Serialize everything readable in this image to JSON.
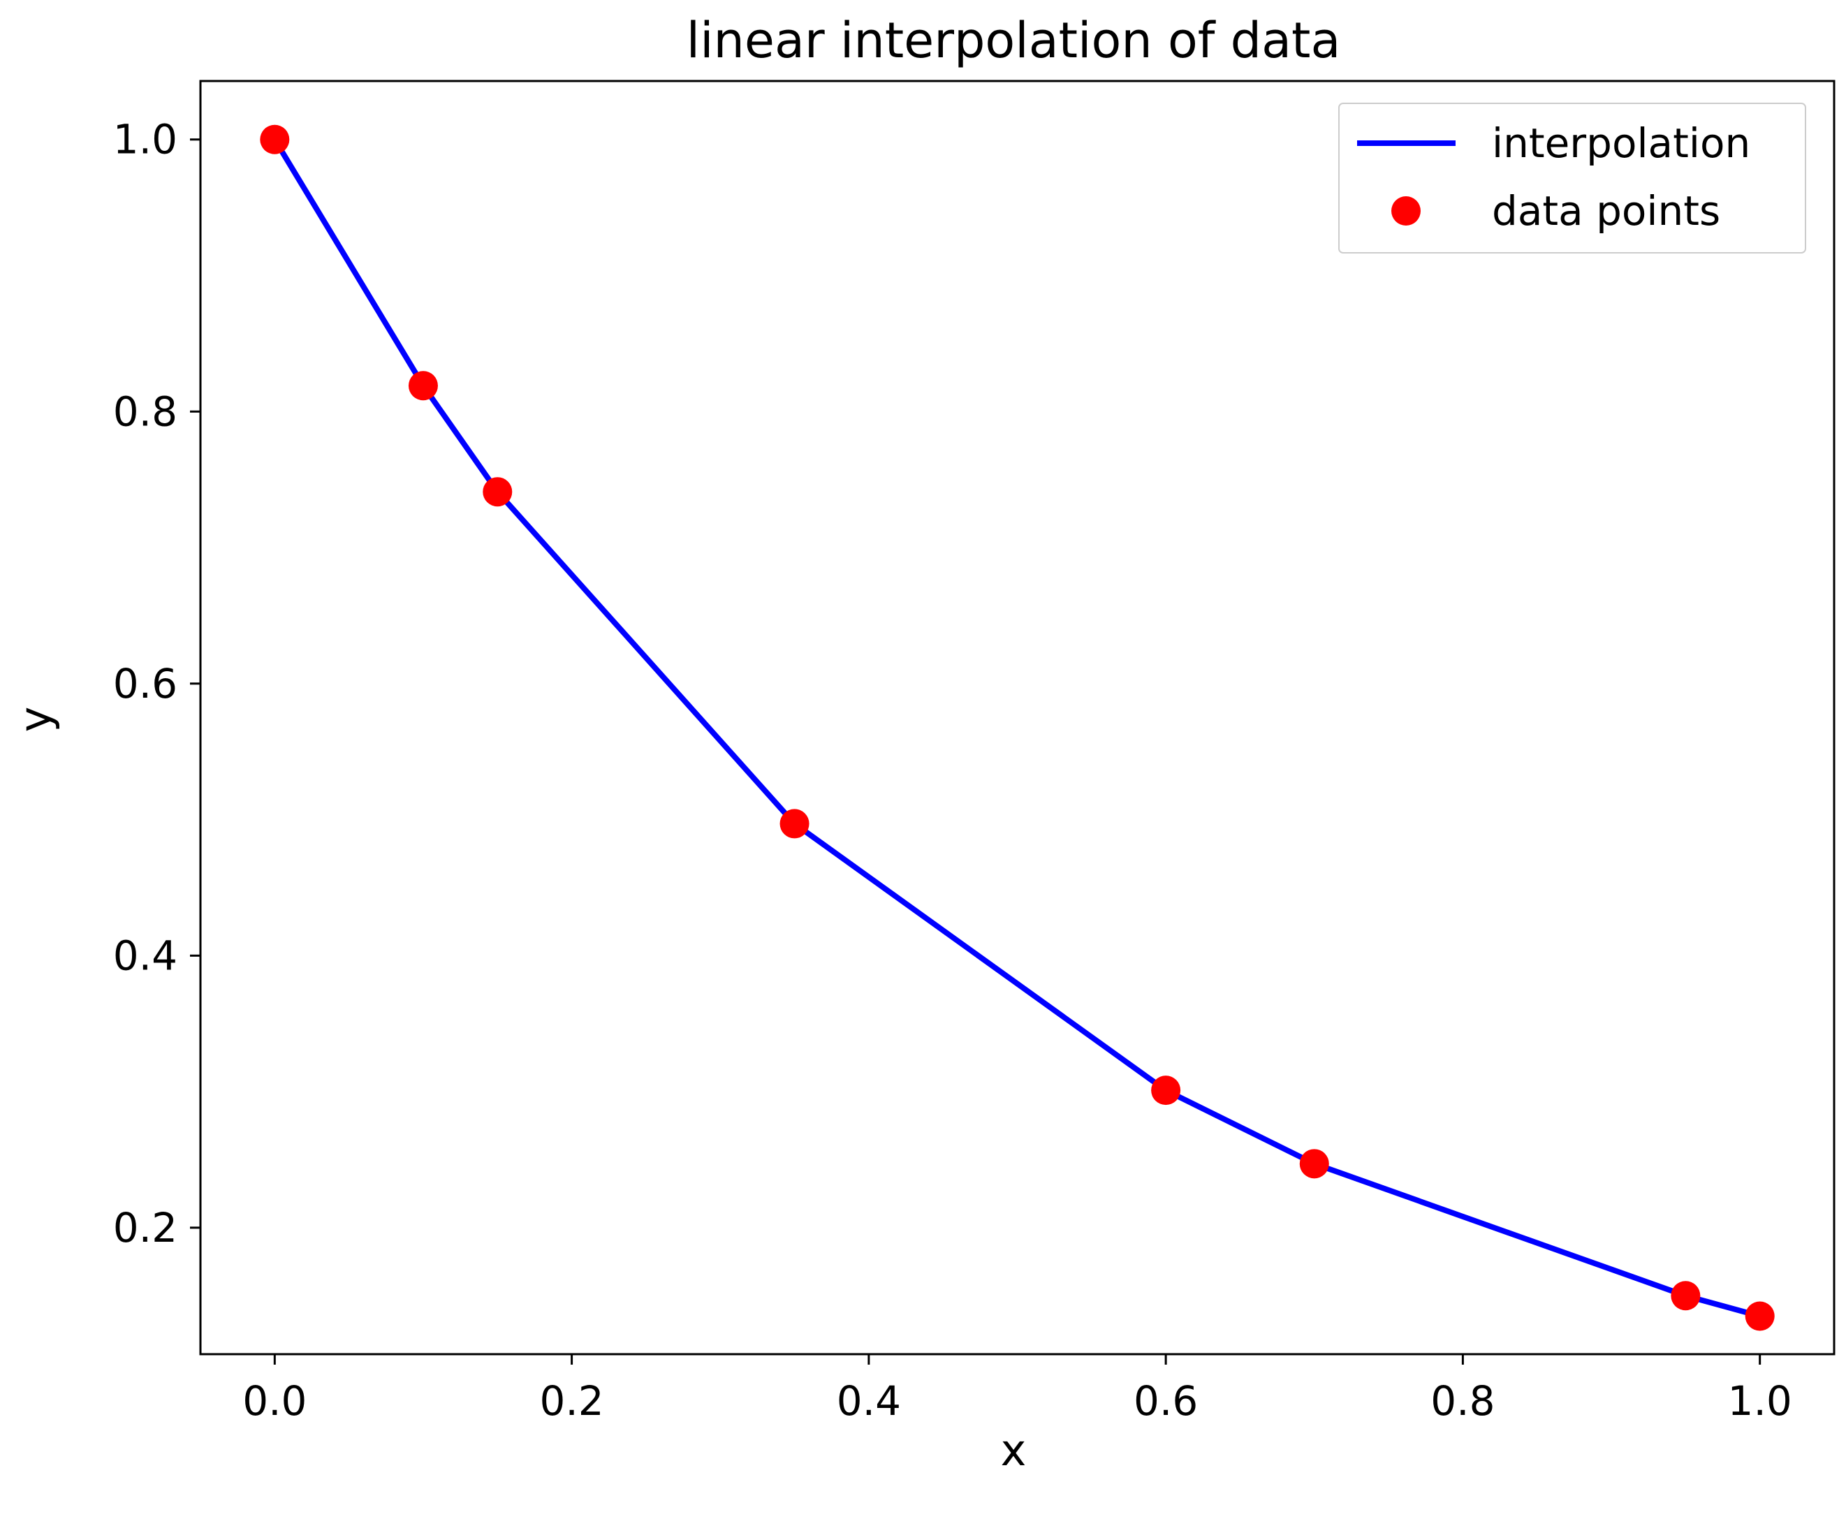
{
  "chart_data": {
    "type": "line",
    "title": "linear interpolation of data",
    "xlabel": "x",
    "ylabel": "y",
    "xlim": [
      -0.05,
      1.05
    ],
    "ylim": [
      0.107,
      1.043
    ],
    "xticks": [
      0.0,
      0.2,
      0.4,
      0.6,
      0.8,
      1.0
    ],
    "xtick_labels": [
      "0.0",
      "0.2",
      "0.4",
      "0.6",
      "0.8",
      "1.0"
    ],
    "yticks": [
      0.2,
      0.4,
      0.6,
      0.8,
      1.0
    ],
    "ytick_labels": [
      "0.2",
      "0.4",
      "0.6",
      "0.8",
      "1.0"
    ],
    "grid": false,
    "legend": {
      "position": "top-right",
      "entries": [
        {
          "label": "interpolation",
          "marker": "line",
          "color": "#0000ff"
        },
        {
          "label": "data points",
          "marker": "circle",
          "color": "#ff0000"
        }
      ]
    },
    "series": [
      {
        "name": "interpolation",
        "style": "line",
        "color": "#0000ff",
        "x": [
          0.0,
          0.1,
          0.15,
          0.35,
          0.6,
          0.7,
          0.95,
          1.0
        ],
        "y": [
          1.0,
          0.819,
          0.741,
          0.497,
          0.301,
          0.247,
          0.15,
          0.135
        ]
      },
      {
        "name": "data points",
        "style": "markers",
        "color": "#ff0000",
        "x": [
          0.0,
          0.1,
          0.15,
          0.35,
          0.6,
          0.7,
          0.95,
          1.0
        ],
        "y": [
          1.0,
          0.819,
          0.741,
          0.497,
          0.301,
          0.247,
          0.15,
          0.135
        ]
      }
    ]
  }
}
